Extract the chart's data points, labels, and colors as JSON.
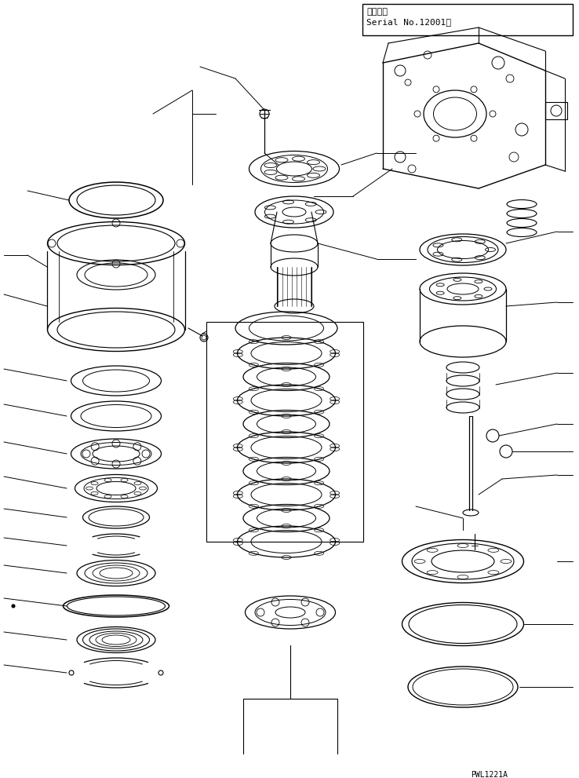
{
  "background_color": "#ffffff",
  "line_color": "#000000",
  "serial_text_1": "適用号機",
  "serial_text_2": "Serial No.12001～",
  "watermark": "PWL1221A",
  "fig_width": 7.38,
  "fig_height": 9.91,
  "dpi": 100
}
